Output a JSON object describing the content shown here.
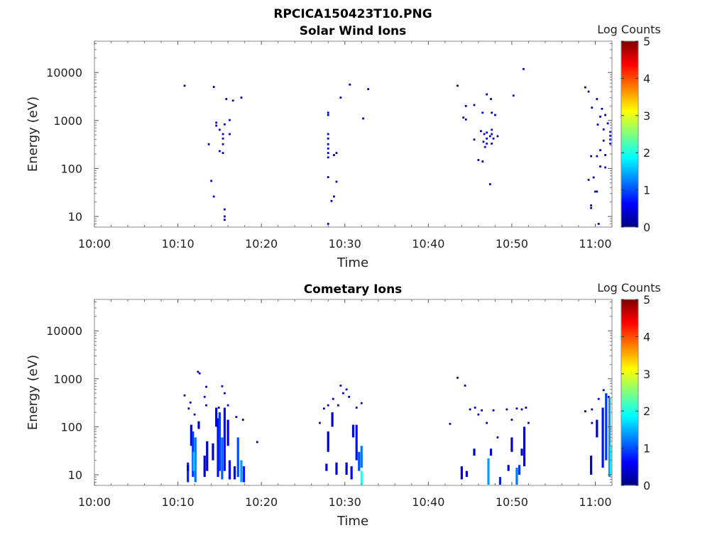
{
  "figure": {
    "title": "RPCICA150423T10.PNG",
    "colorbar_label": "Log Counts",
    "colorbar_ticks": [
      "0",
      "1",
      "2",
      "3",
      "4",
      "5"
    ]
  },
  "chart_data": [
    {
      "type": "heatmap",
      "title": "Solar Wind Ions",
      "xlabel": "Time",
      "ylabel": "Energy (eV)",
      "x_ticks": [
        "10:00",
        "10:10",
        "10:20",
        "10:30",
        "10:40",
        "10:50",
        "11:00"
      ],
      "y_ticks": [
        "10",
        "100",
        "1000",
        "10000"
      ],
      "xlim_minutes": [
        0,
        62
      ],
      "ylim": [
        6,
        45000
      ],
      "y_scale": "log",
      "color_range": [
        0,
        5
      ],
      "x_unit": "minutes after 10:00",
      "points": [
        [
          10.8,
          5300,
          0.2
        ],
        [
          14.3,
          5000,
          0.2
        ],
        [
          15.8,
          2800,
          0.2
        ],
        [
          16.6,
          2600,
          0.2
        ],
        [
          17.6,
          3000,
          0.2
        ],
        [
          14.6,
          900,
          0.3
        ],
        [
          14.6,
          780,
          0.3
        ],
        [
          15.0,
          640,
          0.3
        ],
        [
          15.6,
          830,
          0.3
        ],
        [
          16.2,
          1020,
          0.4
        ],
        [
          15.4,
          520,
          0.3
        ],
        [
          16.2,
          520,
          0.3
        ],
        [
          15.4,
          420,
          0.3
        ],
        [
          15.4,
          320,
          0.3
        ],
        [
          13.7,
          320,
          0.3
        ],
        [
          15.0,
          230,
          0.3
        ],
        [
          15.4,
          210,
          0.3
        ],
        [
          14.0,
          55,
          0.3
        ],
        [
          14.3,
          26,
          0.4
        ],
        [
          15.6,
          14,
          0.5
        ],
        [
          15.6,
          10,
          0.5
        ],
        [
          15.6,
          8.5,
          0.5
        ],
        [
          28.0,
          1450,
          0.3
        ],
        [
          28.0,
          1300,
          0.3
        ],
        [
          28.0,
          520,
          0.3
        ],
        [
          28.0,
          420,
          0.3
        ],
        [
          28.0,
          320,
          0.3
        ],
        [
          28.0,
          260,
          0.3
        ],
        [
          28.0,
          210,
          0.3
        ],
        [
          28.0,
          170,
          0.3
        ],
        [
          28.0,
          66,
          0.2
        ],
        [
          28.7,
          190,
          0.2
        ],
        [
          29.0,
          210,
          0.3
        ],
        [
          29.0,
          53,
          0.3
        ],
        [
          28.7,
          26,
          0.3
        ],
        [
          28.4,
          21,
          0.3
        ],
        [
          28.0,
          7,
          0.5
        ],
        [
          29.5,
          3000,
          0.2
        ],
        [
          30.6,
          5600,
          0.2
        ],
        [
          32.2,
          1100,
          0.2
        ],
        [
          32.8,
          4500,
          0.2
        ],
        [
          43.5,
          5300,
          0.2
        ],
        [
          44.5,
          2000,
          0.2
        ],
        [
          45.5,
          2100,
          0.2
        ],
        [
          46.5,
          1450,
          0.3
        ],
        [
          47.0,
          3500,
          0.2
        ],
        [
          47.5,
          2800,
          0.2
        ],
        [
          47.6,
          1450,
          0.3
        ],
        [
          48.0,
          1300,
          0.3
        ],
        [
          44.2,
          1150,
          0.3
        ],
        [
          44.5,
          1050,
          0.3
        ],
        [
          46.3,
          600,
          0.3
        ],
        [
          46.7,
          520,
          0.3
        ],
        [
          47.0,
          560,
          0.4
        ],
        [
          47.6,
          640,
          0.5
        ],
        [
          47.6,
          520,
          0.5
        ],
        [
          47.0,
          420,
          0.4
        ],
        [
          47.4,
          470,
          0.5
        ],
        [
          48.3,
          470,
          0.3
        ],
        [
          47.8,
          420,
          0.3
        ],
        [
          45.5,
          400,
          0.3
        ],
        [
          46.6,
          360,
          0.3
        ],
        [
          47.0,
          330,
          0.4
        ],
        [
          46.8,
          280,
          0.4
        ],
        [
          47.6,
          330,
          0.3
        ],
        [
          46.0,
          150,
          0.2
        ],
        [
          46.5,
          140,
          0.2
        ],
        [
          47.4,
          47,
          0.3
        ],
        [
          51.4,
          11800,
          0.2
        ],
        [
          50.2,
          3300,
          0.2
        ],
        [
          58.8,
          4900,
          0.2
        ],
        [
          59.2,
          4000,
          0.2
        ],
        [
          60.2,
          2800,
          0.2
        ],
        [
          59.6,
          1850,
          0.2
        ],
        [
          60.8,
          1750,
          0.2
        ],
        [
          61.2,
          1300,
          0.2
        ],
        [
          60.6,
          1200,
          0.3
        ],
        [
          60.3,
          820,
          0.3
        ],
        [
          61.5,
          870,
          0.4
        ],
        [
          61.0,
          650,
          0.4
        ],
        [
          61.8,
          580,
          0.5
        ],
        [
          61.8,
          480,
          0.6
        ],
        [
          61.8,
          400,
          0.6
        ],
        [
          61.8,
          330,
          0.5
        ],
        [
          61.0,
          380,
          0.3
        ],
        [
          60.6,
          240,
          0.3
        ],
        [
          61.2,
          190,
          0.3
        ],
        [
          59.5,
          180,
          0.3
        ],
        [
          60.2,
          180,
          0.3
        ],
        [
          60.6,
          110,
          0.3
        ],
        [
          61.2,
          105,
          0.3
        ],
        [
          59.8,
          65,
          0.2
        ],
        [
          59.2,
          58,
          0.2
        ],
        [
          60.0,
          33,
          0.4
        ],
        [
          60.2,
          33,
          0.4
        ],
        [
          59.5,
          17,
          0.3
        ],
        [
          59.5,
          15,
          0.3
        ],
        [
          60.4,
          7,
          0.3
        ]
      ]
    },
    {
      "type": "heatmap",
      "title": "Cometary Ions",
      "xlabel": "Time",
      "ylabel": "Energy (eV)",
      "x_ticks": [
        "10:00",
        "10:10",
        "10:20",
        "10:30",
        "10:40",
        "10:50",
        "11:00"
      ],
      "y_ticks": [
        "10",
        "100",
        "1000",
        "10000"
      ],
      "xlim_minutes": [
        0,
        62
      ],
      "ylim": [
        6,
        45000
      ],
      "y_scale": "log",
      "color_range": [
        0,
        5
      ],
      "x_unit": "minutes after 10:00",
      "columns": [
        [
          11.2,
          7,
          18,
          0.8
        ],
        [
          11.2,
          12,
          16,
          0.5
        ],
        [
          11.6,
          40,
          110,
          0.4
        ],
        [
          11.8,
          9,
          80,
          0.9
        ],
        [
          12.1,
          7,
          60,
          1.2
        ],
        [
          11.9,
          12,
          30,
          1.6
        ],
        [
          12.5,
          90,
          130,
          0.3
        ],
        [
          13.2,
          9,
          25,
          0.5
        ],
        [
          13.5,
          12,
          50,
          0.4
        ],
        [
          14.2,
          20,
          45,
          0.4
        ],
        [
          14.6,
          100,
          250,
          0.4
        ],
        [
          14.8,
          9,
          150,
          0.7
        ],
        [
          15.0,
          12,
          200,
          0.9
        ],
        [
          15.3,
          8,
          60,
          1.1
        ],
        [
          15.6,
          12,
          250,
          0.7
        ],
        [
          16.0,
          40,
          140,
          0.5
        ],
        [
          16.2,
          8,
          20,
          0.6
        ],
        [
          16.8,
          8,
          15,
          0.6
        ],
        [
          17.2,
          9,
          60,
          1.0
        ],
        [
          17.6,
          7,
          20,
          1.4
        ],
        [
          17.9,
          7,
          15,
          0.7
        ],
        [
          27.8,
          12,
          17,
          0.4
        ],
        [
          28.0,
          30,
          80,
          0.4
        ],
        [
          28.5,
          100,
          200,
          0.4
        ],
        [
          29.0,
          10,
          18,
          0.4
        ],
        [
          30.2,
          10,
          18,
          0.4
        ],
        [
          30.8,
          8,
          15,
          0.6
        ],
        [
          31.0,
          60,
          110,
          0.4
        ],
        [
          31.4,
          20,
          110,
          0.7
        ],
        [
          31.7,
          12,
          30,
          1.0
        ],
        [
          32.0,
          6.2,
          12,
          2.0
        ],
        [
          32.0,
          14,
          40,
          1.2
        ],
        [
          44.0,
          8,
          15,
          0.5
        ],
        [
          44.6,
          9,
          12,
          0.4
        ],
        [
          45.5,
          25,
          35,
          0.4
        ],
        [
          47.2,
          6.2,
          22,
          1.4
        ],
        [
          47.5,
          25,
          35,
          0.5
        ],
        [
          48.6,
          6.2,
          9,
          0.8
        ],
        [
          49.6,
          12,
          16,
          0.5
        ],
        [
          50.0,
          30,
          60,
          0.4
        ],
        [
          50.6,
          6.2,
          14,
          1.2
        ],
        [
          50.9,
          10,
          16,
          0.9
        ],
        [
          51.2,
          25,
          35,
          0.4
        ],
        [
          51.5,
          15,
          100,
          0.4
        ],
        [
          59.5,
          10,
          25,
          0.5
        ],
        [
          60.2,
          60,
          140,
          0.5
        ],
        [
          60.9,
          14,
          250,
          0.7
        ],
        [
          61.3,
          20,
          500,
          0.9
        ],
        [
          61.7,
          9,
          400,
          1.4
        ],
        [
          61.9,
          10,
          40,
          2.0
        ]
      ],
      "points": [
        [
          10.8,
          450,
          0.2
        ],
        [
          11.5,
          320,
          0.2
        ],
        [
          11.3,
          240,
          0.2
        ],
        [
          12.0,
          180,
          0.3
        ],
        [
          12.4,
          1400,
          0.3
        ],
        [
          12.6,
          1300,
          0.3
        ],
        [
          13.4,
          680,
          0.3
        ],
        [
          13.2,
          420,
          0.3
        ],
        [
          13.4,
          280,
          0.3
        ],
        [
          14.9,
          250,
          0.3
        ],
        [
          15.3,
          700,
          0.4
        ],
        [
          15.6,
          500,
          0.4
        ],
        [
          16.0,
          280,
          0.3
        ],
        [
          17.0,
          160,
          0.3
        ],
        [
          17.8,
          140,
          0.3
        ],
        [
          19.5,
          48,
          0.2
        ],
        [
          27.0,
          120,
          0.2
        ],
        [
          27.5,
          240,
          0.2
        ],
        [
          28.0,
          280,
          0.3
        ],
        [
          28.6,
          380,
          0.2
        ],
        [
          29.2,
          280,
          0.3
        ],
        [
          29.5,
          720,
          0.3
        ],
        [
          29.8,
          500,
          0.3
        ],
        [
          30.2,
          600,
          0.3
        ],
        [
          30.5,
          420,
          0.2
        ],
        [
          31.4,
          250,
          0.3
        ],
        [
          32.0,
          310,
          0.3
        ],
        [
          43.5,
          1050,
          0.2
        ],
        [
          44.4,
          720,
          0.2
        ],
        [
          42.6,
          115,
          0.2
        ],
        [
          45.0,
          230,
          0.2
        ],
        [
          45.6,
          250,
          0.3
        ],
        [
          46.0,
          180,
          0.2
        ],
        [
          46.4,
          220,
          0.3
        ],
        [
          47.0,
          120,
          0.3
        ],
        [
          47.8,
          220,
          0.3
        ],
        [
          48.3,
          60,
          0.3
        ],
        [
          49.4,
          230,
          0.2
        ],
        [
          50.0,
          140,
          0.3
        ],
        [
          50.6,
          240,
          0.3
        ],
        [
          51.2,
          230,
          0.2
        ],
        [
          51.7,
          250,
          0.2
        ],
        [
          52.0,
          120,
          0.2
        ],
        [
          58.8,
          210,
          0.2
        ],
        [
          59.6,
          230,
          0.2
        ],
        [
          59.6,
          120,
          0.3
        ],
        [
          60.4,
          380,
          0.3
        ],
        [
          61.0,
          580,
          0.3
        ],
        [
          61.6,
          420,
          0.3
        ]
      ]
    }
  ]
}
